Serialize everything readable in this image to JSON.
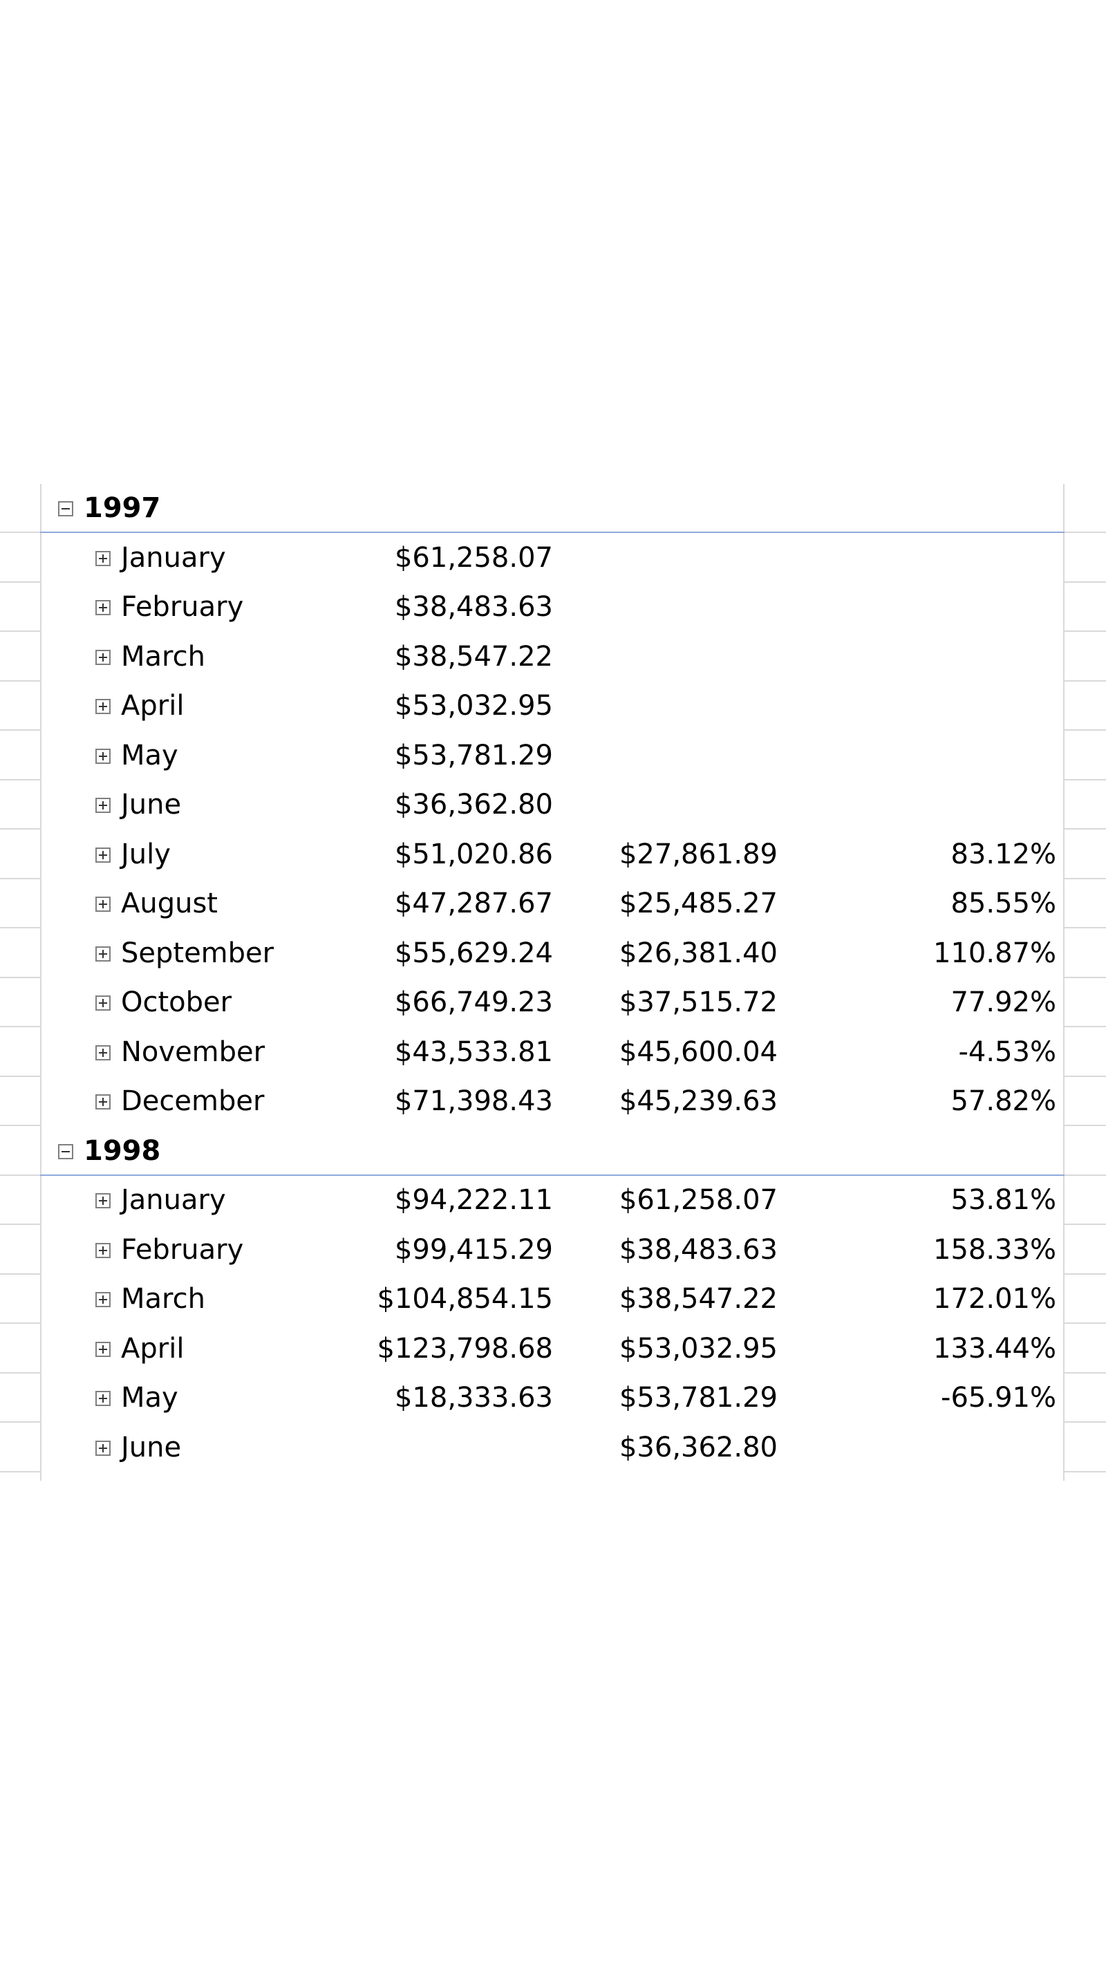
{
  "pivot": {
    "years": [
      {
        "label": "1997",
        "months": [
          {
            "label": "January",
            "v1": "$61,258.07",
            "v2": "",
            "v3": ""
          },
          {
            "label": "February",
            "v1": "$38,483.63",
            "v2": "",
            "v3": ""
          },
          {
            "label": "March",
            "v1": "$38,547.22",
            "v2": "",
            "v3": ""
          },
          {
            "label": "April",
            "v1": "$53,032.95",
            "v2": "",
            "v3": ""
          },
          {
            "label": "May",
            "v1": "$53,781.29",
            "v2": "",
            "v3": ""
          },
          {
            "label": "June",
            "v1": "$36,362.80",
            "v2": "",
            "v3": ""
          },
          {
            "label": "July",
            "v1": "$51,020.86",
            "v2": "$27,861.89",
            "v3": "83.12%"
          },
          {
            "label": "August",
            "v1": "$47,287.67",
            "v2": "$25,485.27",
            "v3": "85.55%"
          },
          {
            "label": "September",
            "v1": "$55,629.24",
            "v2": "$26,381.40",
            "v3": "110.87%"
          },
          {
            "label": "October",
            "v1": "$66,749.23",
            "v2": "$37,515.72",
            "v3": "77.92%"
          },
          {
            "label": "November",
            "v1": "$43,533.81",
            "v2": "$45,600.04",
            "v3": "-4.53%"
          },
          {
            "label": "December",
            "v1": "$71,398.43",
            "v2": "$45,239.63",
            "v3": "57.82%"
          }
        ]
      },
      {
        "label": "1998",
        "months": [
          {
            "label": "January",
            "v1": "$94,222.11",
            "v2": "$61,258.07",
            "v3": "53.81%"
          },
          {
            "label": "February",
            "v1": "$99,415.29",
            "v2": "$38,483.63",
            "v3": "158.33%"
          },
          {
            "label": "March",
            "v1": "$104,854.15",
            "v2": "$38,547.22",
            "v3": "172.01%"
          },
          {
            "label": "April",
            "v1": "$123,798.68",
            "v2": "$53,032.95",
            "v3": "133.44%"
          },
          {
            "label": "May",
            "v1": "$18,333.63",
            "v2": "$53,781.29",
            "v3": "-65.91%"
          },
          {
            "label": "June",
            "v1": "",
            "v2": "$36,362.80",
            "v3": ""
          }
        ]
      }
    ]
  },
  "colors": {
    "gridline": "#d9d9d9",
    "year_separator": "#8ea9db",
    "toggle_border": "#7f7f7f"
  },
  "icons": {
    "expanded": "minus-toggle-icon",
    "collapsed": "plus-toggle-icon"
  }
}
